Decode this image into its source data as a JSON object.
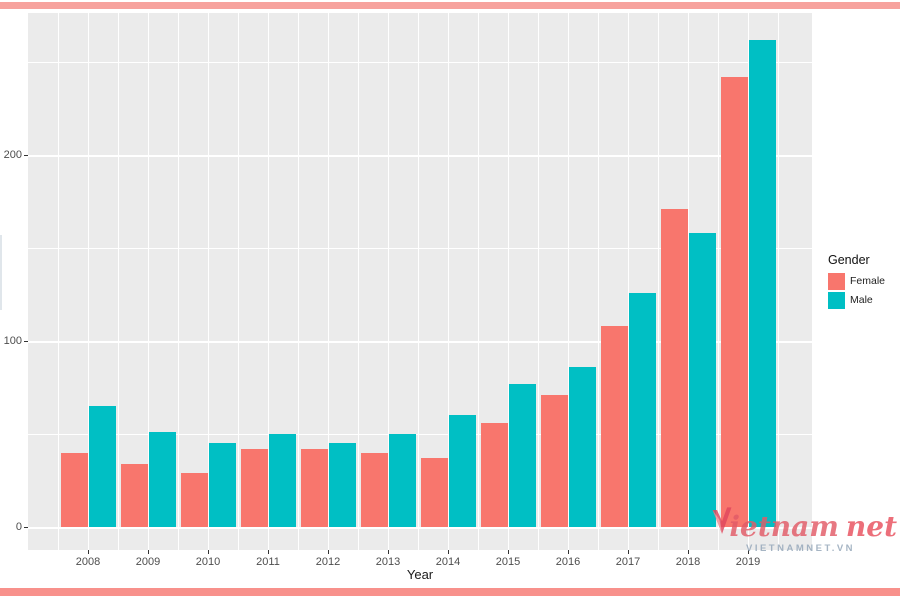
{
  "page": {
    "top_accent_color": "#f7a29d",
    "bottom_accent_color": "#f8918c"
  },
  "chart_data": {
    "type": "bar",
    "title": "",
    "xlabel": "Year",
    "ylabel": "",
    "categories": [
      "2008",
      "2009",
      "2010",
      "2011",
      "2012",
      "2013",
      "2014",
      "2015",
      "2016",
      "2017",
      "2018",
      "2019"
    ],
    "series": [
      {
        "name": "Female",
        "color": "#F8766D",
        "values": [
          40,
          34,
          29,
          42,
          42,
          40,
          37,
          56,
          71,
          108,
          171,
          242
        ]
      },
      {
        "name": "Male",
        "color": "#00BFC4",
        "values": [
          65,
          51,
          45,
          50,
          45,
          50,
          60,
          77,
          86,
          126,
          158,
          262
        ]
      }
    ],
    "ylim": [
      0,
      276
    ],
    "yticks": [
      0,
      100,
      200
    ],
    "yticks_minor": [
      50,
      150,
      250
    ],
    "legend_title": "Gender",
    "legend_position": "right",
    "panel_background": "#ebebeb",
    "grid": "on",
    "grid_color": "#ffffff",
    "tick_color": "#333333",
    "tick_label_color": "#4d4d4d"
  },
  "watermark": {
    "text_main": "ietnam",
    "text_accent": "net",
    "subtext": "VIETNAMNET.VN"
  }
}
